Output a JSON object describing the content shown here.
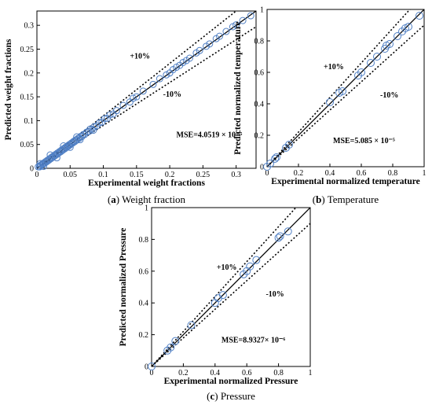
{
  "chart_data": [
    {
      "type": "scatter",
      "caption_tag": "(a)",
      "caption_text": "Weight fraction",
      "xlabel": "Experimental weight fractions",
      "ylabel": "Predicted weight fractions",
      "xlim": [
        0,
        0.33
      ],
      "ylim": [
        0,
        0.33
      ],
      "xticks": [
        "0",
        "0.05",
        "0.1",
        "0.15",
        "0.2",
        "0.25",
        "0.3"
      ],
      "yticks": [
        "0",
        "0.05",
        "0.1",
        "0.15",
        "0.2",
        "0.25",
        "0.3"
      ],
      "plus_label": "+10%",
      "minus_label": "-10%",
      "mse": "MSE=4.0519 × 10⁻⁵",
      "points": [
        [
          0.002,
          0.003
        ],
        [
          0.004,
          0.003
        ],
        [
          0.005,
          0.006
        ],
        [
          0.006,
          0.005
        ],
        [
          0.008,
          0.009
        ],
        [
          0.009,
          0.008
        ],
        [
          0.01,
          0.011
        ],
        [
          0.012,
          0.011
        ],
        [
          0.013,
          0.014
        ],
        [
          0.015,
          0.014
        ],
        [
          0.016,
          0.017
        ],
        [
          0.018,
          0.017
        ],
        [
          0.019,
          0.02
        ],
        [
          0.021,
          0.02
        ],
        [
          0.022,
          0.023
        ],
        [
          0.024,
          0.023
        ],
        [
          0.025,
          0.026
        ],
        [
          0.027,
          0.026
        ],
        [
          0.028,
          0.029
        ],
        [
          0.03,
          0.029
        ],
        [
          0.031,
          0.032
        ],
        [
          0.033,
          0.032
        ],
        [
          0.034,
          0.035
        ],
        [
          0.036,
          0.035
        ],
        [
          0.037,
          0.038
        ],
        [
          0.039,
          0.038
        ],
        [
          0.04,
          0.041
        ],
        [
          0.042,
          0.041
        ],
        [
          0.043,
          0.044
        ],
        [
          0.045,
          0.044
        ],
        [
          0.046,
          0.047
        ],
        [
          0.048,
          0.047
        ],
        [
          0.049,
          0.05
        ],
        [
          0.051,
          0.05
        ],
        [
          0.052,
          0.053
        ],
        [
          0.054,
          0.053
        ],
        [
          0.055,
          0.056
        ],
        [
          0.057,
          0.056
        ],
        [
          0.058,
          0.059
        ],
        [
          0.06,
          0.059
        ],
        [
          0.062,
          0.063
        ],
        [
          0.064,
          0.063
        ],
        [
          0.066,
          0.067
        ],
        [
          0.068,
          0.067
        ],
        [
          0.07,
          0.071
        ],
        [
          0.072,
          0.071
        ],
        [
          0.075,
          0.076
        ],
        [
          0.078,
          0.077
        ],
        [
          0.08,
          0.082
        ],
        [
          0.083,
          0.082
        ],
        [
          0.086,
          0.087
        ],
        [
          0.09,
          0.089
        ],
        [
          0.094,
          0.095
        ],
        [
          0.098,
          0.097
        ],
        [
          0.102,
          0.104
        ],
        [
          0.106,
          0.105
        ],
        [
          0.11,
          0.112
        ],
        [
          0.115,
          0.114
        ],
        [
          0.12,
          0.121
        ],
        [
          0.13,
          0.132
        ],
        [
          0.14,
          0.139
        ],
        [
          0.145,
          0.147
        ],
        [
          0.15,
          0.15
        ],
        [
          0.16,
          0.162
        ],
        [
          0.175,
          0.176
        ],
        [
          0.185,
          0.188
        ],
        [
          0.195,
          0.196
        ],
        [
          0.2,
          0.2
        ],
        [
          0.205,
          0.207
        ],
        [
          0.21,
          0.212
        ],
        [
          0.215,
          0.216
        ],
        [
          0.22,
          0.222
        ],
        [
          0.225,
          0.226
        ],
        [
          0.23,
          0.231
        ],
        [
          0.24,
          0.242
        ],
        [
          0.245,
          0.247
        ],
        [
          0.255,
          0.256
        ],
        [
          0.26,
          0.261
        ],
        [
          0.27,
          0.272
        ],
        [
          0.275,
          0.277
        ],
        [
          0.285,
          0.287
        ],
        [
          0.295,
          0.297
        ],
        [
          0.3,
          0.301
        ],
        [
          0.31,
          0.31
        ],
        [
          0.322,
          0.32
        ],
        [
          0.005,
          0.01
        ],
        [
          0.01,
          0.004
        ],
        [
          0.02,
          0.028
        ],
        [
          0.03,
          0.022
        ],
        [
          0.04,
          0.047
        ],
        [
          0.05,
          0.044
        ],
        [
          0.06,
          0.066
        ],
        [
          0.065,
          0.06
        ],
        [
          0.085,
          0.08
        ]
      ]
    },
    {
      "type": "scatter",
      "caption_tag": "(b)",
      "caption_text": "Temperature",
      "xlabel": "Experimental normalized temperature",
      "ylabel": "Predicted normalized temperature",
      "xlim": [
        0,
        1
      ],
      "ylim": [
        0,
        1
      ],
      "xticks": [
        "0",
        "0.2",
        "0.4",
        "0.6",
        "0.8",
        "1"
      ],
      "yticks": [
        "0",
        "0.2",
        "0.4",
        "0.6",
        "0.8",
        "1"
      ],
      "plus_label": "+10%",
      "minus_label": "-10%",
      "mse": "MSE=5.085 × 10⁻⁵",
      "points": [
        [
          0.0,
          0.0
        ],
        [
          0.02,
          0.02
        ],
        [
          0.05,
          0.05
        ],
        [
          0.06,
          0.06
        ],
        [
          0.12,
          0.12
        ],
        [
          0.14,
          0.14
        ],
        [
          0.4,
          0.41
        ],
        [
          0.46,
          0.47
        ],
        [
          0.48,
          0.48
        ],
        [
          0.58,
          0.58
        ],
        [
          0.6,
          0.6
        ],
        [
          0.66,
          0.66
        ],
        [
          0.7,
          0.7
        ],
        [
          0.75,
          0.75
        ],
        [
          0.76,
          0.77
        ],
        [
          0.78,
          0.78
        ],
        [
          0.83,
          0.83
        ],
        [
          0.86,
          0.86
        ],
        [
          0.88,
          0.88
        ],
        [
          0.9,
          0.89
        ],
        [
          0.97,
          0.96
        ]
      ]
    },
    {
      "type": "scatter",
      "caption_tag": "(c)",
      "caption_text": "Pressure",
      "xlabel": "Experimental normalized Pressure",
      "ylabel": "Predicted normalized Pressure",
      "xlim": [
        0,
        1
      ],
      "ylim": [
        0,
        1
      ],
      "xticks": [
        "0",
        "0.2",
        "0.4",
        "0.6",
        "0.8",
        "1"
      ],
      "yticks": [
        "0",
        "0.2",
        "0.4",
        "0.6",
        "0.8",
        "1"
      ],
      "plus_label": "+10%",
      "minus_label": "-10%",
      "mse": "MSE=8.9327× 10⁻⁶",
      "points": [
        [
          0.0,
          0.0
        ],
        [
          0.1,
          0.1
        ],
        [
          0.12,
          0.12
        ],
        [
          0.15,
          0.16
        ],
        [
          0.25,
          0.26
        ],
        [
          0.4,
          0.4
        ],
        [
          0.42,
          0.43
        ],
        [
          0.45,
          0.45
        ],
        [
          0.58,
          0.58
        ],
        [
          0.6,
          0.6
        ],
        [
          0.62,
          0.63
        ],
        [
          0.66,
          0.67
        ],
        [
          0.8,
          0.81
        ],
        [
          0.81,
          0.82
        ],
        [
          0.86,
          0.85
        ]
      ]
    }
  ],
  "colors": {
    "marker": "#4f7fc4",
    "parity_line": "#000000",
    "bound_lines": "#000000"
  }
}
